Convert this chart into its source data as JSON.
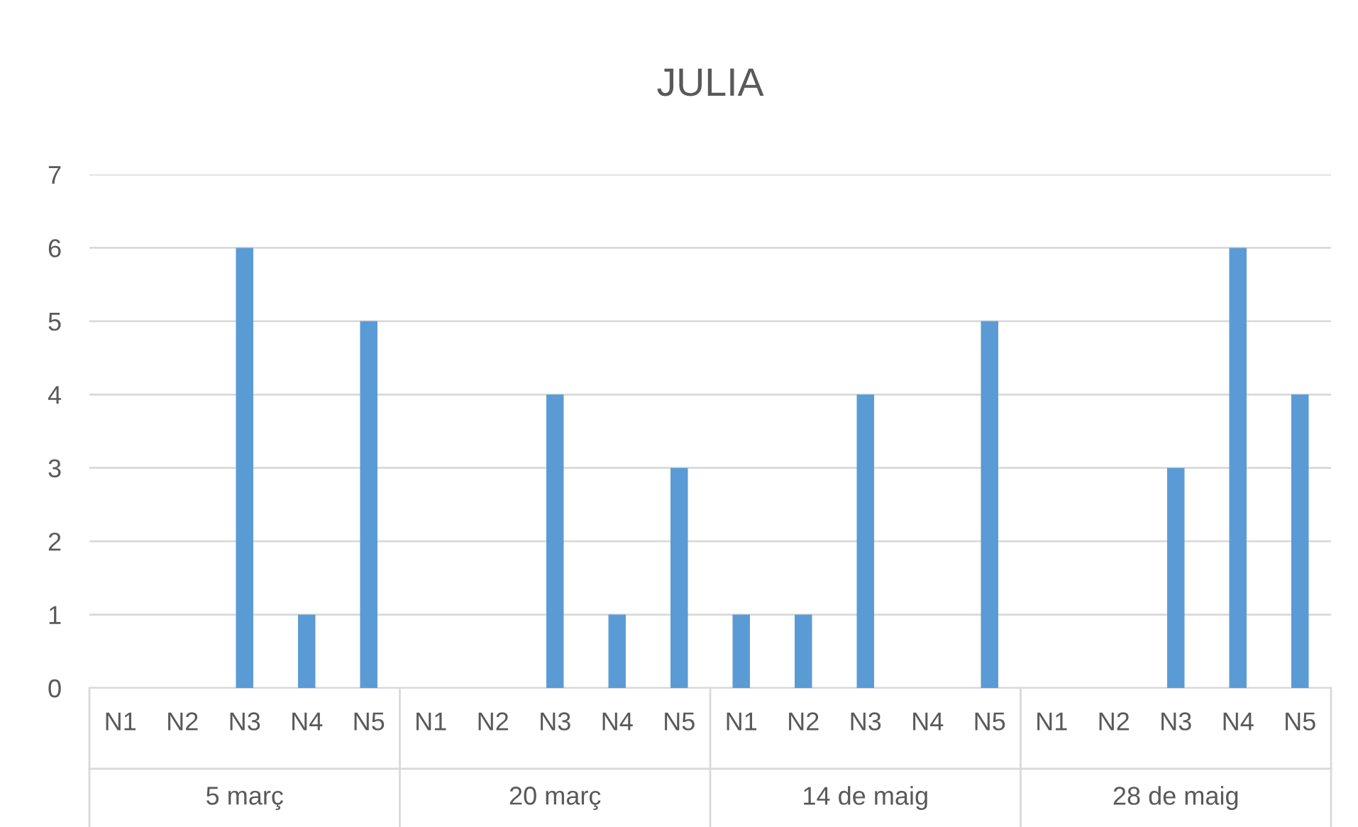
{
  "chart_data": {
    "type": "bar",
    "title": "JULIA",
    "categories": [
      "N1",
      "N2",
      "N3",
      "N4",
      "N5",
      "N1",
      "N2",
      "N3",
      "N4",
      "N5",
      "N1",
      "N2",
      "N3",
      "N4",
      "N5",
      "N1",
      "N2",
      "N3",
      "N4",
      "N5"
    ],
    "values": [
      0,
      0,
      6,
      1,
      5,
      0,
      0,
      4,
      1,
      3,
      1,
      1,
      4,
      0,
      5,
      0,
      0,
      3,
      6,
      4
    ],
    "color": "#5b9bd5",
    "ylim": [
      0,
      7
    ],
    "yticks": [
      0,
      1,
      2,
      3,
      4,
      5,
      6,
      7
    ],
    "grid": "y",
    "legend": false,
    "annotations": [
      "5 març",
      "20 març",
      "14 de maig",
      "28 de maig"
    ]
  }
}
